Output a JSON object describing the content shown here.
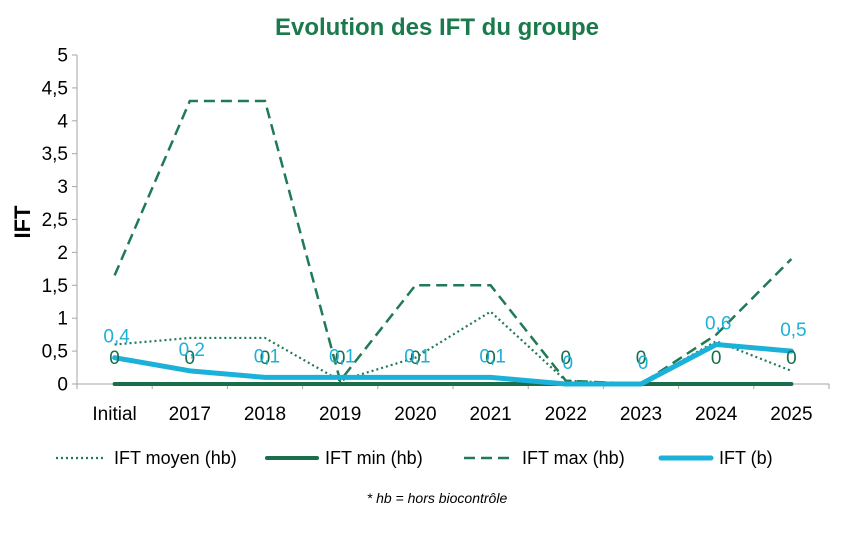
{
  "chart_data": {
    "type": "line",
    "title": "Evolution des IFT du groupe",
    "ylabel": "IFT",
    "xlabel": "",
    "categories": [
      "Initial",
      "2017",
      "2018",
      "2019",
      "2020",
      "2021",
      "2022",
      "2023",
      "2024",
      "2025"
    ],
    "ylim": [
      0,
      5
    ],
    "yticks": [
      "0",
      "0,5",
      "1",
      "1,5",
      "2",
      "2,5",
      "3",
      "3,5",
      "4",
      "4,5",
      "5"
    ],
    "grid": false,
    "legend_position": "bottom",
    "series": [
      {
        "name": "IFT moyen (hb)",
        "values": [
          0.6,
          0.7,
          0.7,
          0.05,
          0.4,
          1.1,
          0.05,
          0.0,
          0.65,
          0.2
        ],
        "style": "dotted",
        "color": "#1f7a55"
      },
      {
        "name": "IFT min (hb)",
        "values": [
          0,
          0,
          0,
          0,
          0,
          0,
          0,
          0,
          0,
          0
        ],
        "style": "solid",
        "color": "#1a6e4a",
        "labels": [
          "0",
          "0",
          "0",
          "0",
          "0",
          "0",
          "0",
          "0",
          "0",
          "0"
        ]
      },
      {
        "name": "IFT max (hb)",
        "values": [
          1.65,
          4.3,
          4.3,
          0.05,
          1.5,
          1.5,
          0.05,
          0.0,
          0.75,
          1.9
        ],
        "style": "dashed",
        "color": "#1f7a55"
      },
      {
        "name": "IFT (b)",
        "values": [
          0.4,
          0.2,
          0.1,
          0.1,
          0.1,
          0.1,
          0.0,
          0.0,
          0.6,
          0.5
        ],
        "style": "solid-thick",
        "color": "#1cb1d9",
        "labels": [
          "0,4",
          "0,2",
          "0,1",
          "0,1",
          "0,1",
          "0,1",
          "0",
          "0",
          "0,6",
          "0,5"
        ]
      }
    ],
    "footnote": "* hb = hors biocontrôle"
  },
  "colors": {
    "title": "#1a7a4c",
    "axis": "#a6a6a6"
  }
}
